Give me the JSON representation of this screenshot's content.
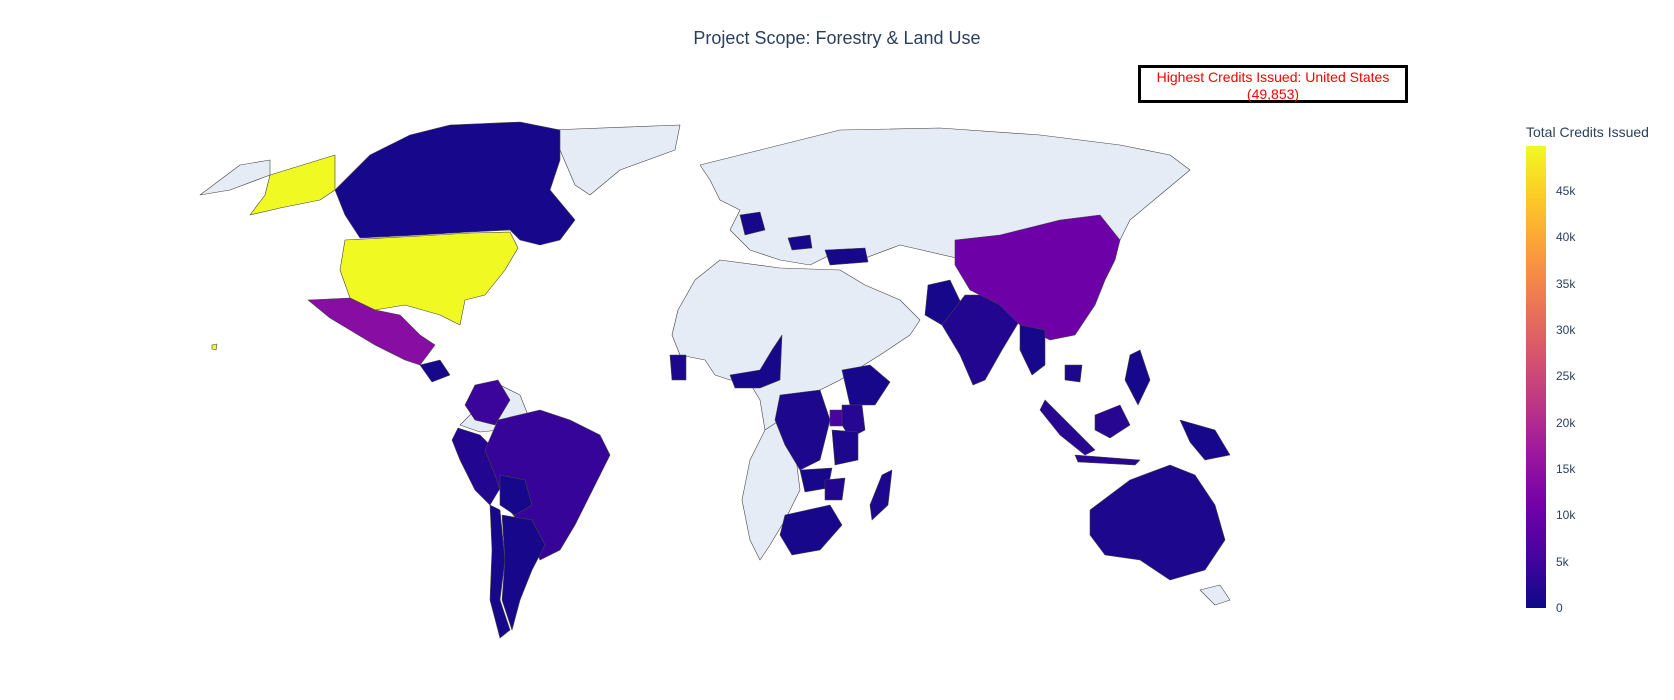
{
  "title": "Project Scope: Forestry & Land Use",
  "annotation": {
    "line1": "Highest Credits Issued: United States",
    "line2": "(49,853)",
    "text_color": "#ff0000",
    "border_color": "#000000"
  },
  "colorbar": {
    "title": "Total Credits Issued",
    "min": 0,
    "max": 49853,
    "colorscale": [
      "#0d0887",
      "#46039f",
      "#7201a8",
      "#9c179e",
      "#bd3786",
      "#d8576b",
      "#ed7953",
      "#fb9f3a",
      "#fdca26",
      "#f0f921"
    ],
    "ticks": [
      {
        "value": 0,
        "label": "0"
      },
      {
        "value": 5000,
        "label": "5k"
      },
      {
        "value": 10000,
        "label": "10k"
      },
      {
        "value": 15000,
        "label": "15k"
      },
      {
        "value": 20000,
        "label": "20k"
      },
      {
        "value": 25000,
        "label": "25k"
      },
      {
        "value": 30000,
        "label": "30k"
      },
      {
        "value": 35000,
        "label": "35k"
      },
      {
        "value": 40000,
        "label": "40k"
      },
      {
        "value": 45000,
        "label": "45k"
      }
    ]
  },
  "map": {
    "no_data_color": "#e5ecf6",
    "border_color": "#444444"
  },
  "chart_data": {
    "type": "choropleth",
    "metric": "Total Credits Issued",
    "countries": [
      {
        "name": "United States",
        "value": 49853
      },
      {
        "name": "Mexico",
        "value": 14000
      },
      {
        "name": "China",
        "value": 10500
      },
      {
        "name": "Brazil",
        "value": 4000
      },
      {
        "name": "Colombia",
        "value": 4500
      },
      {
        "name": "Peru",
        "value": 2000
      },
      {
        "name": "Canada",
        "value": 1000
      },
      {
        "name": "India",
        "value": 2000
      },
      {
        "name": "Indonesia",
        "value": 2500
      },
      {
        "name": "Australia",
        "value": 1500
      },
      {
        "name": "Kenya",
        "value": 2500
      },
      {
        "name": "Uganda",
        "value": 6000
      },
      {
        "name": "DR Congo",
        "value": 1500
      },
      {
        "name": "Tanzania",
        "value": 1500
      },
      {
        "name": "Zambia",
        "value": 1000
      },
      {
        "name": "Zimbabwe",
        "value": 2000
      },
      {
        "name": "Madagascar",
        "value": 1500
      },
      {
        "name": "South Africa",
        "value": 1000
      },
      {
        "name": "Ethiopia",
        "value": 1000
      },
      {
        "name": "Nigeria",
        "value": 1000
      },
      {
        "name": "Ghana",
        "value": 1500
      },
      {
        "name": "Germany",
        "value": 1000
      },
      {
        "name": "Romania",
        "value": 1000
      },
      {
        "name": "Turkey",
        "value": 1000
      },
      {
        "name": "Pakistan",
        "value": 1000
      },
      {
        "name": "Myanmar",
        "value": 1000
      },
      {
        "name": "Cambodia",
        "value": 1500
      },
      {
        "name": "Philippines",
        "value": 1000
      },
      {
        "name": "Papua New Guinea",
        "value": 1000
      },
      {
        "name": "Chile",
        "value": 1000
      },
      {
        "name": "Argentina",
        "value": 1000
      },
      {
        "name": "Bolivia",
        "value": 1000
      },
      {
        "name": "Guatemala",
        "value": 1000
      }
    ]
  }
}
